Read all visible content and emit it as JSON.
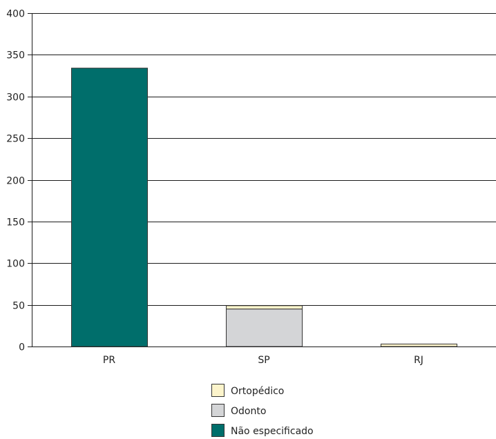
{
  "chart_data": {
    "type": "bar",
    "stacked": true,
    "categories": [
      "PR",
      "SP",
      "RJ"
    ],
    "series": [
      {
        "name": "Não especificado",
        "values": [
          334,
          0,
          0
        ],
        "color": "#006e6b"
      },
      {
        "name": "Odonto",
        "values": [
          0,
          45,
          0
        ],
        "color": "#d4d5d7"
      },
      {
        "name": "Ortopédico",
        "values": [
          0,
          4,
          3
        ],
        "color": "#fcf4cb"
      }
    ],
    "legend_order": [
      "Ortopédico",
      "Odonto",
      "Não especificado"
    ],
    "ylim": [
      0,
      400
    ],
    "yticks": [
      0,
      50,
      100,
      150,
      200,
      250,
      300,
      350,
      400
    ],
    "grid": true,
    "legend_position": "bottom"
  }
}
